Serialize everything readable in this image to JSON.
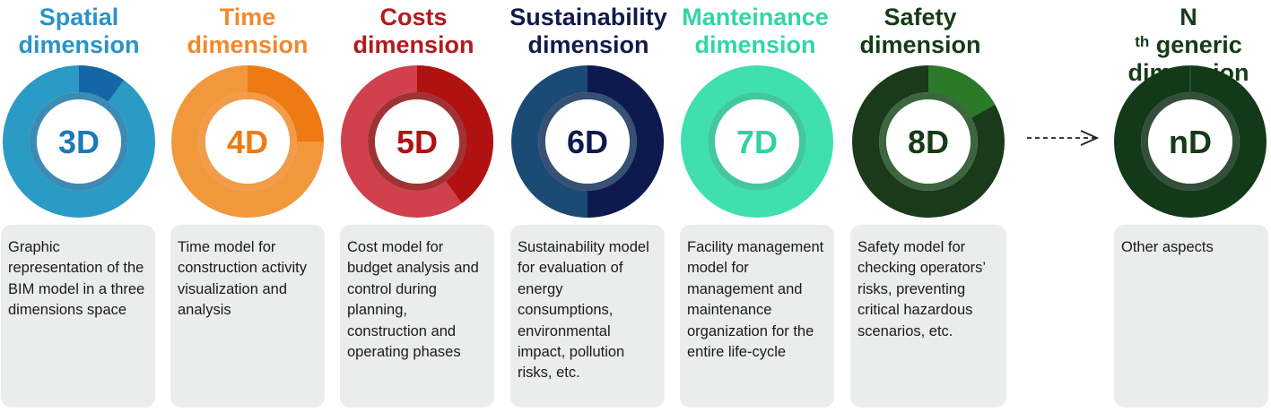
{
  "dimensions": [
    {
      "title_line1": "Spatial",
      "title_line2": "dimension",
      "label": "3D",
      "description": "Graphic representation of the BIM model in a three dimensions space",
      "color": "#2a9bc4",
      "highlight": "#1466a6",
      "inner": "#1a77a8",
      "fraction": 0.1
    },
    {
      "title_line1": "Time",
      "title_line2": "dimension",
      "label": "4D",
      "description": "Time model for construction activity visualization and analysis",
      "color": "#f2983c",
      "highlight": "#ee7a14",
      "inner": "#f08a2a",
      "fraction": 0.25
    },
    {
      "title_line1": "Costs",
      "title_line2": "dimension",
      "label": "5D",
      "description": "Cost model for budget analysis and control during planning, construction and operating phases",
      "color": "#d1404d",
      "highlight": "#b01212",
      "inner": "#8e0f10",
      "fraction": 0.4
    },
    {
      "title_line1": "Sustainability",
      "title_line2": "dimension",
      "label": "6D",
      "description": "Sustainability model for evaluation of energy consumptions, environmental impact, pollution risks, etc.",
      "color": "#1b4a75",
      "highlight": "#0e1a4e",
      "inner": "#13325a",
      "fraction": 0.5
    },
    {
      "title_line1": "Manteinance",
      "title_line2": "dimension",
      "label": "7D",
      "description": "Facility management model for management and maintenance organization for the entire life-cycle",
      "color": "#3fe0ae",
      "highlight": "#2fd3a0",
      "inner": "#22be8c",
      "fraction": 0.0
    },
    {
      "title_line1": "Safety",
      "title_line2": "dimension",
      "label": "8D",
      "description": "Safety model for checking operators’ risks, preventing critical hazardous scenarios, etc.",
      "color": "#1a3a1b",
      "highlight": "#2b7a2a",
      "inner": "#1b4a1c",
      "fraction": 0.17
    },
    {
      "title_line1": "N",
      "title_sup": "th",
      "title_rest": " generic",
      "title_line2": "dimension",
      "label": "nD",
      "description": "Other aspects",
      "color": "#123a18",
      "highlight": "#1a4a20",
      "inner": "#103016",
      "fraction": 0.0
    }
  ]
}
